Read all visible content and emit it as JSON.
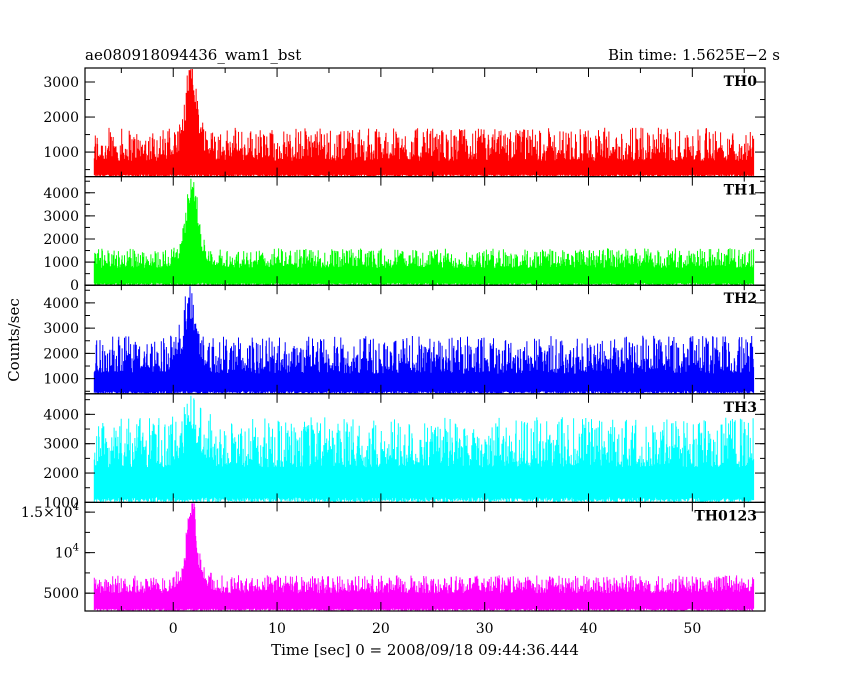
{
  "header": {
    "title": "ae080918094436_wam1_bst",
    "bin_time": "Bin time: 1.5625E−2 s"
  },
  "chart_data": {
    "type": "line",
    "xlabel": "Time [sec] 0 = 2008/09/18 09:44:36.444",
    "ylabel": "Counts/sec",
    "xlim": [
      -8.5,
      57
    ],
    "xticks": [
      "0",
      "10",
      "20",
      "30",
      "40",
      "50"
    ],
    "x_tick_values": [
      0,
      10,
      20,
      30,
      40,
      50
    ],
    "data_x_range": [
      -7.6,
      55.9
    ],
    "bin_time_s": 0.015625,
    "grid": false,
    "legend": "none",
    "panels": [
      {
        "name": "TH0",
        "color": "#ff0000",
        "ylim": [
          300,
          3400
        ],
        "yticks": [
          {
            "v": 1000,
            "label": "1000"
          },
          {
            "v": 2000,
            "label": "2000"
          },
          {
            "v": 3000,
            "label": "3000"
          }
        ],
        "baseline_counts": 750,
        "noise_peak_counts": 1700,
        "burst_peak_counts": 3400,
        "burst_center_s": 1.8
      },
      {
        "name": "TH1",
        "color": "#00ff00",
        "ylim": [
          0,
          4700
        ],
        "yticks": [
          {
            "v": 0,
            "label": "0"
          },
          {
            "v": 1000,
            "label": "1000"
          },
          {
            "v": 2000,
            "label": "2000"
          },
          {
            "v": 3000,
            "label": "3000"
          },
          {
            "v": 4000,
            "label": "4000"
          }
        ],
        "baseline_counts": 750,
        "noise_peak_counts": 1600,
        "burst_peak_counts": 4600,
        "burst_center_s": 1.8
      },
      {
        "name": "TH2",
        "color": "#0000ff",
        "ylim": [
          400,
          4700
        ],
        "yticks": [
          {
            "v": 1000,
            "label": "1000"
          },
          {
            "v": 2000,
            "label": "2000"
          },
          {
            "v": 3000,
            "label": "3000"
          },
          {
            "v": 4000,
            "label": "4000"
          }
        ],
        "baseline_counts": 1200,
        "noise_peak_counts": 2700,
        "burst_peak_counts": 4600,
        "burst_center_s": 1.6
      },
      {
        "name": "TH3",
        "color": "#00ffff",
        "ylim": [
          1000,
          4700
        ],
        "yticks": [
          {
            "v": 1000,
            "label": "1000"
          },
          {
            "v": 2000,
            "label": "2000"
          },
          {
            "v": 3000,
            "label": "3000"
          },
          {
            "v": 4000,
            "label": "4000"
          }
        ],
        "baseline_counts": 2200,
        "noise_peak_counts": 3900,
        "burst_peak_counts": 4700,
        "burst_center_s": 1.9
      },
      {
        "name": "TH0123",
        "color": "#ff00ff",
        "ylim": [
          2800,
          16200
        ],
        "yticks": [
          {
            "v": 5000,
            "label": "5000"
          },
          {
            "v": 10000,
            "label": "10^4"
          },
          {
            "v": 15000,
            "label": "1.5×10^4"
          }
        ],
        "baseline_counts": 5000,
        "noise_peak_counts": 7200,
        "burst_peak_counts": 16000,
        "burst_center_s": 1.8
      }
    ]
  }
}
